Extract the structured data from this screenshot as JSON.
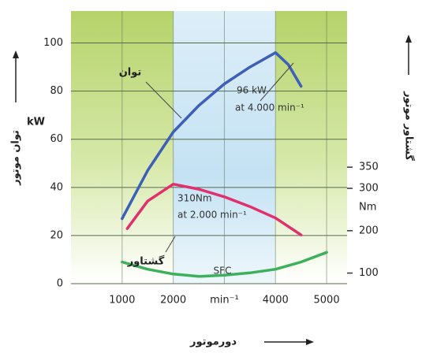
{
  "chart_data": {
    "type": "line",
    "x_label": "دورموتور",
    "y_label": "توان موتور",
    "y_unit": "kW",
    "y2_label": "گشتاور موتور",
    "y2_unit": "Nm",
    "xlim": [
      0,
      5400
    ],
    "xticks": [
      1000,
      2000,
      {
        "value": 3000,
        "label": "min⁻¹"
      },
      4000,
      5000
    ],
    "ylim": [
      0,
      110
    ],
    "yticks": [
      0,
      20,
      40,
      60,
      80,
      100
    ],
    "y2lim": [
      75,
      700
    ],
    "y2ticks": [
      100,
      200,
      300,
      350
    ],
    "grid": true,
    "annotations": [
      "96 kW",
      "at 4.000 min⁻¹",
      "310Nm",
      "at 2.000 min⁻¹"
    ],
    "series": [
      {
        "name": "توان",
        "color": "#3d5fb8",
        "x": [
          1000,
          1500,
          2000,
          2500,
          3000,
          3500,
          4000,
          4250,
          4500
        ],
        "values": [
          27,
          47,
          63,
          74,
          83,
          90,
          96,
          91,
          82
        ]
      },
      {
        "name": "گشتاور",
        "color": "#e0306e",
        "axis": "y2",
        "x": [
          1100,
          1500,
          2000,
          2500,
          3000,
          3500,
          4000,
          4500
        ],
        "values": [
          205,
          270,
          310,
          298,
          280,
          257,
          230,
          190
        ]
      },
      {
        "name": "SFC",
        "color": "#3cb05a",
        "x": [
          1000,
          1500,
          2000,
          2500,
          3000,
          3500,
          4000,
          4500,
          5000
        ],
        "values": [
          9,
          6,
          4,
          3,
          3.5,
          4.5,
          6,
          9,
          13
        ]
      }
    ]
  }
}
